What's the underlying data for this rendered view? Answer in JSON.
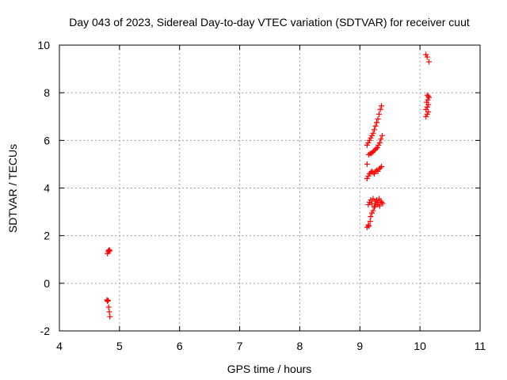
{
  "chart_data": {
    "type": "scatter",
    "title": "Day 043 of 2023, Sidereal Day-to-day VTEC variation (SDTVAR) for receiver cuut",
    "xlabel": "GPS time / hours",
    "ylabel": "SDTVAR / TECUs",
    "xlim": [
      4,
      11
    ],
    "ylim": [
      -2,
      10
    ],
    "xticks": [
      4,
      5,
      6,
      7,
      8,
      9,
      10,
      11
    ],
    "yticks": [
      -2,
      0,
      2,
      4,
      6,
      8,
      10
    ],
    "grid": true,
    "marker": "+",
    "color": "#ff0000",
    "series": [
      {
        "name": "SDTVAR",
        "points": [
          [
            4.8,
            1.25
          ],
          [
            4.81,
            1.33
          ],
          [
            4.82,
            1.38
          ],
          [
            4.83,
            1.4
          ],
          [
            4.84,
            1.36
          ],
          [
            4.79,
            -0.7
          ],
          [
            4.8,
            -0.75
          ],
          [
            4.81,
            -0.72
          ],
          [
            4.82,
            -1.0
          ],
          [
            4.83,
            -1.2
          ],
          [
            4.84,
            -1.4
          ],
          [
            9.12,
            2.35
          ],
          [
            9.14,
            2.45
          ],
          [
            9.15,
            2.4
          ],
          [
            9.17,
            2.6
          ],
          [
            9.18,
            2.8
          ],
          [
            9.2,
            2.95
          ],
          [
            9.22,
            3.05
          ],
          [
            9.24,
            3.2
          ],
          [
            9.25,
            3.25
          ],
          [
            9.27,
            3.35
          ],
          [
            9.3,
            3.3
          ],
          [
            9.33,
            3.25
          ],
          [
            9.14,
            3.3
          ],
          [
            9.16,
            3.4
          ],
          [
            9.18,
            3.5
          ],
          [
            9.2,
            3.35
          ],
          [
            9.22,
            3.55
          ],
          [
            9.25,
            3.45
          ],
          [
            9.28,
            3.5
          ],
          [
            9.3,
            3.4
          ],
          [
            9.32,
            3.55
          ],
          [
            9.34,
            3.45
          ],
          [
            9.36,
            3.4
          ],
          [
            9.38,
            3.35
          ],
          [
            9.12,
            4.4
          ],
          [
            9.14,
            4.5
          ],
          [
            9.16,
            4.6
          ],
          [
            9.18,
            4.65
          ],
          [
            9.2,
            4.7
          ],
          [
            9.22,
            4.65
          ],
          [
            9.24,
            4.6
          ],
          [
            9.26,
            4.7
          ],
          [
            9.28,
            4.75
          ],
          [
            9.3,
            4.7
          ],
          [
            9.32,
            4.8
          ],
          [
            9.34,
            4.85
          ],
          [
            9.36,
            4.9
          ],
          [
            9.12,
            5.0
          ],
          [
            9.15,
            5.4
          ],
          [
            9.17,
            5.45
          ],
          [
            9.19,
            5.45
          ],
          [
            9.21,
            5.5
          ],
          [
            9.23,
            5.55
          ],
          [
            9.25,
            5.6
          ],
          [
            9.27,
            5.65
          ],
          [
            9.29,
            5.7
          ],
          [
            9.31,
            5.8
          ],
          [
            9.33,
            5.9
          ],
          [
            9.35,
            6.05
          ],
          [
            9.37,
            6.2
          ],
          [
            9.12,
            5.8
          ],
          [
            9.14,
            5.9
          ],
          [
            9.16,
            6.0
          ],
          [
            9.18,
            6.1
          ],
          [
            9.2,
            6.2
          ],
          [
            9.22,
            6.3
          ],
          [
            9.24,
            6.45
          ],
          [
            9.26,
            6.6
          ],
          [
            9.28,
            6.75
          ],
          [
            9.3,
            6.9
          ],
          [
            9.32,
            7.1
          ],
          [
            9.34,
            7.3
          ],
          [
            9.36,
            7.45
          ],
          [
            10.1,
            7.0
          ],
          [
            10.12,
            7.1
          ],
          [
            10.14,
            7.2
          ],
          [
            10.1,
            7.3
          ],
          [
            10.12,
            7.4
          ],
          [
            10.14,
            7.5
          ],
          [
            10.11,
            7.6
          ],
          [
            10.13,
            7.7
          ],
          [
            10.15,
            7.8
          ],
          [
            10.12,
            7.9
          ],
          [
            10.14,
            7.85
          ],
          [
            10.1,
            9.6
          ],
          [
            10.12,
            9.5
          ],
          [
            10.15,
            9.3
          ]
        ]
      }
    ]
  }
}
